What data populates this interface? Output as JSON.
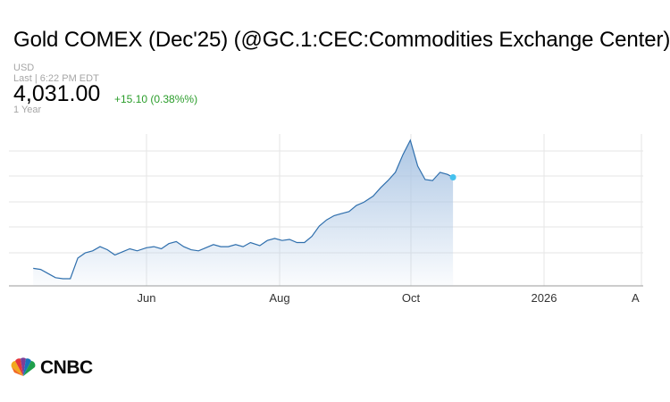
{
  "header": {
    "title": "Gold COMEX (Dec'25) (@GC.1:CEC:Commodities Exchange Center)",
    "currency": "USD",
    "last_label": "Last | 6:22 PM EDT",
    "price": "4,031.00",
    "change": "+15.10 (0.38%%)",
    "range": "1 Year",
    "change_color": "#2a9d2a"
  },
  "brand": {
    "logo_text": "CNBC"
  },
  "chart_data": {
    "type": "area",
    "line_color": "#2f6fad",
    "fill_color": "#a9c4e3",
    "endpoint_color": "#45c1ee",
    "x_tick_labels": [
      "Jun",
      "Aug",
      "Oct",
      "2026",
      "A"
    ],
    "x": [
      "2025-04-01",
      "2025-04-05",
      "2025-04-09",
      "2025-04-13",
      "2025-04-17",
      "2025-04-21",
      "2025-04-25",
      "2025-04-29",
      "2025-05-03",
      "2025-05-07",
      "2025-05-11",
      "2025-05-15",
      "2025-05-19",
      "2025-05-23",
      "2025-05-27",
      "2025-06-01",
      "2025-06-05",
      "2025-06-09",
      "2025-06-13",
      "2025-06-17",
      "2025-06-21",
      "2025-06-25",
      "2025-06-29",
      "2025-07-03",
      "2025-07-07",
      "2025-07-11",
      "2025-07-15",
      "2025-07-19",
      "2025-07-23",
      "2025-07-27",
      "2025-08-01",
      "2025-08-05",
      "2025-08-09",
      "2025-08-13",
      "2025-08-17",
      "2025-08-21",
      "2025-08-25",
      "2025-08-29",
      "2025-09-02",
      "2025-09-06",
      "2025-09-10",
      "2025-09-14",
      "2025-09-18",
      "2025-09-22",
      "2025-09-26",
      "2025-10-01",
      "2025-10-05",
      "2025-10-09",
      "2025-10-13",
      "2025-10-17",
      "2025-10-21",
      "2025-10-25",
      "2025-10-29",
      "2025-11-02",
      "2025-11-06",
      "2025-11-10",
      "2025-11-13"
    ],
    "values": [
      3150,
      3140,
      3100,
      3060,
      3050,
      3050,
      3250,
      3300,
      3320,
      3360,
      3330,
      3280,
      3310,
      3340,
      3320,
      3350,
      3360,
      3340,
      3390,
      3410,
      3360,
      3330,
      3320,
      3350,
      3380,
      3360,
      3360,
      3380,
      3360,
      3400,
      3370,
      3420,
      3440,
      3420,
      3430,
      3400,
      3400,
      3460,
      3560,
      3620,
      3660,
      3680,
      3700,
      3760,
      3790,
      3850,
      3930,
      4000,
      4080,
      4250,
      4390,
      4140,
      4010,
      4000,
      4080,
      4060,
      4031
    ]
  }
}
